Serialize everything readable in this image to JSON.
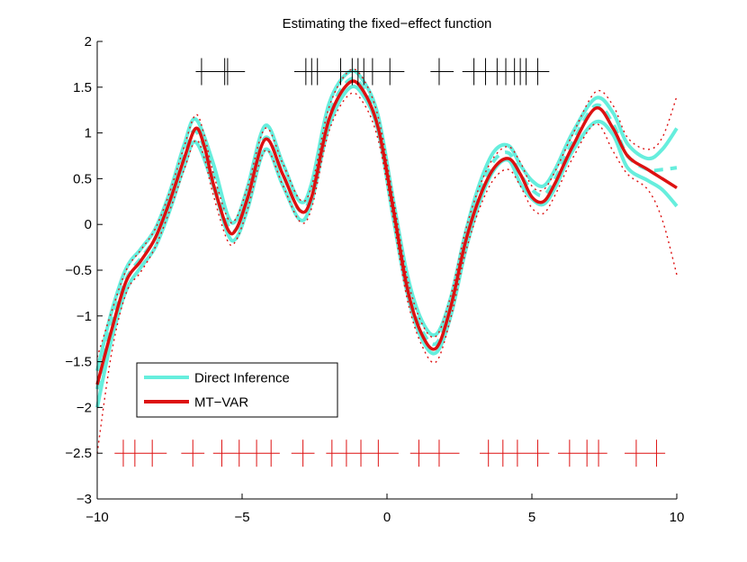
{
  "chart_data": {
    "type": "line",
    "title": "Estimating the fixed−effect function",
    "xlabel": "",
    "ylabel": "",
    "xlim": [
      -10,
      10
    ],
    "ylim": [
      -3,
      2
    ],
    "xticks": [
      -10,
      -5,
      0,
      5,
      10
    ],
    "xtick_labels": [
      "−10",
      "−5",
      "0",
      "5",
      "10"
    ],
    "yticks": [
      2,
      1.5,
      1,
      0.5,
      0,
      -0.5,
      -1,
      -1.5,
      -2,
      -2.5,
      -3
    ],
    "ytick_labels": [
      "2",
      "1.5",
      "1",
      "0.5",
      "0",
      "−0.5",
      "−1",
      "−1.5",
      "−2",
      "−2.5",
      "−3"
    ],
    "grid": false,
    "legend_location": "lower-left",
    "colors": {
      "direct": "#66eedd",
      "mtvar": "#dd1111",
      "marks_top": "#000000",
      "marks_bottom": "#dd1111"
    },
    "series": [
      {
        "name": "Direct Inference",
        "style": "cyan thick mean with two thick band curves",
        "x": [
          -10,
          -9.5,
          -9,
          -8.5,
          -8,
          -7.5,
          -7,
          -6.6,
          -6,
          -5.5,
          -5.2,
          -4.8,
          -4.2,
          -3.6,
          -3,
          -2.6,
          -2,
          -1.3,
          -0.8,
          -0.3,
          0.2,
          0.7,
          1.2,
          1.7,
          2.2,
          2.7,
          3.2,
          3.7,
          4.2,
          4.6,
          5,
          5.4,
          5.8,
          6.4,
          7.2,
          7.8,
          8.3,
          9,
          9.5,
          10
        ],
        "mean": [
          -1.8,
          -1.1,
          -0.6,
          -0.37,
          -0.15,
          0.25,
          0.75,
          1.02,
          0.55,
          0.0,
          -0.05,
          0.3,
          0.95,
          0.55,
          0.15,
          0.35,
          1.2,
          1.58,
          1.48,
          1.1,
          0.2,
          -0.65,
          -1.15,
          -1.3,
          -0.9,
          -0.2,
          0.35,
          0.7,
          0.78,
          0.55,
          0.38,
          0.32,
          0.5,
          0.9,
          1.3,
          1.1,
          0.75,
          0.6,
          0.6,
          0.62
        ],
        "upper": [
          -1.6,
          -0.95,
          -0.48,
          -0.27,
          -0.05,
          0.35,
          0.87,
          1.15,
          0.67,
          0.1,
          0.05,
          0.42,
          1.08,
          0.67,
          0.25,
          0.45,
          1.32,
          1.67,
          1.56,
          1.18,
          0.3,
          -0.55,
          -1.05,
          -1.2,
          -0.8,
          -0.1,
          0.45,
          0.8,
          0.86,
          0.65,
          0.48,
          0.42,
          0.6,
          1.0,
          1.38,
          1.22,
          0.88,
          0.72,
          0.82,
          1.05
        ],
        "lower": [
          -2.0,
          -1.25,
          -0.72,
          -0.47,
          -0.25,
          0.15,
          0.63,
          0.9,
          0.43,
          -0.1,
          -0.15,
          0.18,
          0.82,
          0.43,
          0.05,
          0.25,
          1.08,
          1.49,
          1.4,
          1.02,
          0.1,
          -0.75,
          -1.25,
          -1.4,
          -1.0,
          -0.3,
          0.25,
          0.6,
          0.7,
          0.45,
          0.28,
          0.22,
          0.4,
          0.8,
          1.12,
          0.98,
          0.62,
          0.48,
          0.38,
          0.2
        ]
      },
      {
        "name": "MT−VAR",
        "style": "red thick mean with dotted band curves",
        "x": [
          -10,
          -9.5,
          -9,
          -8.5,
          -8,
          -7.5,
          -7,
          -6.6,
          -6.3,
          -6,
          -5.5,
          -5.2,
          -4.8,
          -4.2,
          -3.6,
          -3,
          -2.6,
          -2,
          -1.3,
          -0.8,
          -0.3,
          0.2,
          0.7,
          1.2,
          1.7,
          2.2,
          2.7,
          3.2,
          3.7,
          4.2,
          4.6,
          5,
          5.4,
          5.8,
          6.4,
          7.2,
          7.8,
          8.3,
          9,
          9.5,
          10
        ],
        "mean": [
          -1.75,
          -1.15,
          -0.62,
          -0.4,
          -0.15,
          0.25,
          0.72,
          1.05,
          0.85,
          0.45,
          -0.05,
          -0.05,
          0.3,
          0.93,
          0.55,
          0.15,
          0.3,
          1.15,
          1.55,
          1.45,
          1.05,
          0.2,
          -0.7,
          -1.2,
          -1.35,
          -0.9,
          -0.2,
          0.3,
          0.62,
          0.72,
          0.55,
          0.3,
          0.25,
          0.45,
          0.85,
          1.27,
          1.05,
          0.75,
          0.6,
          0.5,
          0.4
        ],
        "upper": [
          -1.45,
          -0.95,
          -0.5,
          -0.28,
          -0.05,
          0.35,
          0.85,
          1.2,
          0.97,
          0.57,
          0.07,
          0.07,
          0.42,
          1.05,
          0.67,
          0.27,
          0.42,
          1.28,
          1.68,
          1.58,
          1.17,
          0.32,
          -0.58,
          -1.08,
          -1.22,
          -0.78,
          -0.08,
          0.42,
          0.74,
          0.85,
          0.68,
          0.42,
          0.38,
          0.58,
          0.98,
          1.45,
          1.3,
          0.95,
          0.82,
          0.95,
          1.4
        ],
        "lower": [
          -2.5,
          -1.4,
          -0.75,
          -0.52,
          -0.25,
          0.15,
          0.6,
          0.92,
          0.72,
          0.33,
          -0.18,
          -0.17,
          0.18,
          0.81,
          0.43,
          0.03,
          0.18,
          1.02,
          1.42,
          1.32,
          0.92,
          0.08,
          -0.82,
          -1.32,
          -1.5,
          -1.02,
          -0.32,
          0.18,
          0.5,
          0.6,
          0.42,
          0.18,
          0.12,
          0.32,
          0.72,
          1.1,
          0.8,
          0.55,
          0.38,
          0.05,
          -0.55
        ]
      }
    ],
    "top_marks": {
      "y": 1.67,
      "x": [
        -6.4,
        -5.6,
        -5.5,
        -2.8,
        -2.6,
        -2.4,
        -1.6,
        -1.2,
        -1.0,
        -0.8,
        -0.5,
        0.1,
        1.8,
        3.0,
        3.4,
        3.8,
        4.1,
        4.4,
        4.6,
        4.8,
        5.2
      ],
      "segments": [
        [
          -6.6,
          -4.9
        ],
        [
          -3.2,
          0.6
        ],
        [
          1.5,
          2.3
        ],
        [
          2.6,
          5.6
        ]
      ]
    },
    "bottom_marks": {
      "y": -2.5,
      "x": [
        -9.1,
        -8.7,
        -8.1,
        -6.7,
        -5.7,
        -5.1,
        -4.5,
        -4.0,
        -2.9,
        -1.9,
        -1.4,
        -0.9,
        -0.3,
        1.1,
        1.8,
        3.5,
        4.0,
        4.5,
        5.2,
        6.3,
        6.9,
        7.3,
        8.6,
        9.3
      ],
      "segments": [
        [
          -9.4,
          -7.6
        ],
        [
          -7.1,
          -6.3
        ],
        [
          -6.0,
          -3.7
        ],
        [
          -3.3,
          -2.5
        ],
        [
          -2.1,
          0.4
        ],
        [
          0.8,
          2.5
        ],
        [
          3.2,
          5.6
        ],
        [
          5.9,
          7.6
        ],
        [
          8.2,
          9.6
        ]
      ]
    },
    "legend": {
      "items": [
        "Direct Inference",
        "MT−VAR"
      ]
    }
  }
}
